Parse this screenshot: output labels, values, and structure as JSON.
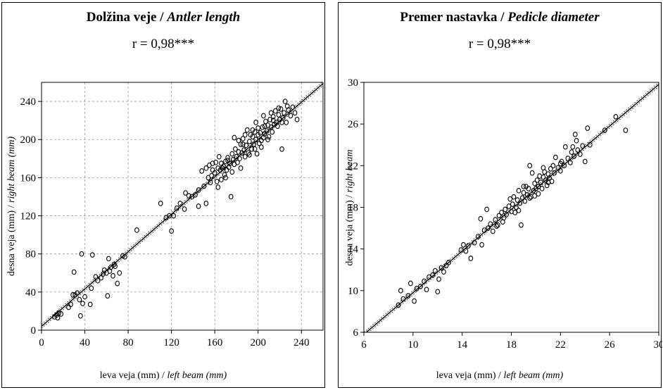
{
  "chart_data": [
    {
      "type": "scatter",
      "title": "Dolžina veje /",
      "title_italic": "Antler length",
      "annotation": "r = 0,98***",
      "xlabel": "leva veja (mm) /",
      "xlabel_italic": "left beam (mm)",
      "ylabel": "desna veja (mm) /",
      "ylabel_italic": "right beam (mm)",
      "xlim": [
        0,
        260
      ],
      "ylim": [
        0,
        260
      ],
      "xticks": [
        0,
        40,
        80,
        120,
        160,
        200,
        240
      ],
      "yticks": [
        0,
        40,
        80,
        120,
        160,
        200,
        240
      ],
      "grid": true,
      "fit": {
        "slope": 0.98,
        "intercept": 4
      },
      "points": [
        [
          12,
          14
        ],
        [
          14,
          16
        ],
        [
          15,
          13
        ],
        [
          16,
          18
        ],
        [
          18,
          17
        ],
        [
          25,
          24
        ],
        [
          27,
          27
        ],
        [
          29,
          37
        ],
        [
          30,
          61
        ],
        [
          31,
          37
        ],
        [
          33,
          39
        ],
        [
          35,
          32
        ],
        [
          36,
          15
        ],
        [
          37,
          80
        ],
        [
          38,
          28
        ],
        [
          40,
          35
        ],
        [
          45,
          27
        ],
        [
          46,
          44
        ],
        [
          47,
          79
        ],
        [
          50,
          56
        ],
        [
          52,
          52
        ],
        [
          55,
          55
        ],
        [
          57,
          59
        ],
        [
          58,
          63
        ],
        [
          60,
          60
        ],
        [
          61,
          36
        ],
        [
          62,
          75
        ],
        [
          63,
          62
        ],
        [
          64,
          66
        ],
        [
          66,
          57
        ],
        [
          67,
          69
        ],
        [
          68,
          67
        ],
        [
          70,
          49
        ],
        [
          72,
          60
        ],
        [
          75,
          78
        ],
        [
          77,
          77
        ],
        [
          88,
          105
        ],
        [
          110,
          133
        ],
        [
          115,
          118
        ],
        [
          118,
          120
        ],
        [
          120,
          104
        ],
        [
          122,
          120
        ],
        [
          125,
          128
        ],
        [
          128,
          133
        ],
        [
          132,
          127
        ],
        [
          133,
          144
        ],
        [
          136,
          141
        ],
        [
          139,
          140
        ],
        [
          142,
          142
        ],
        [
          145,
          147
        ],
        [
          148,
          167
        ],
        [
          150,
          151
        ],
        [
          152,
          133
        ],
        [
          154,
          160
        ],
        [
          155,
          173
        ],
        [
          156,
          155
        ],
        [
          157,
          162
        ],
        [
          158,
          168
        ],
        [
          160,
          165
        ],
        [
          161,
          176
        ],
        [
          162,
          156
        ],
        [
          163,
          170
        ],
        [
          164,
          182
        ],
        [
          165,
          168
        ],
        [
          166,
          158
        ],
        [
          167,
          170
        ],
        [
          168,
          172
        ],
        [
          169,
          163
        ],
        [
          170,
          177
        ],
        [
          171,
          168
        ],
        [
          172,
          181
        ],
        [
          173,
          171
        ],
        [
          174,
          175
        ],
        [
          175,
          140
        ],
        [
          176,
          185
        ],
        [
          177,
          179
        ],
        [
          178,
          174
        ],
        [
          179,
          190
        ],
        [
          180,
          182
        ],
        [
          181,
          176
        ],
        [
          182,
          187
        ],
        [
          183,
          180
        ],
        [
          184,
          195
        ],
        [
          185,
          186
        ],
        [
          186,
          201
        ],
        [
          187,
          189
        ],
        [
          188,
          182
        ],
        [
          189,
          194
        ],
        [
          190,
          210
        ],
        [
          191,
          186
        ],
        [
          192,
          198
        ],
        [
          193,
          205
        ],
        [
          194,
          190
        ],
        [
          195,
          203
        ],
        [
          196,
          195
        ],
        [
          197,
          208
        ],
        [
          198,
          200
        ],
        [
          199,
          185
        ],
        [
          200,
          212
        ],
        [
          201,
          196
        ],
        [
          202,
          207
        ],
        [
          203,
          199
        ],
        [
          204,
          213
        ],
        [
          205,
          202
        ],
        [
          206,
          206
        ],
        [
          207,
          219
        ],
        [
          208,
          209
        ],
        [
          209,
          215
        ],
        [
          210,
          203
        ],
        [
          211,
          221
        ],
        [
          212,
          213
        ],
        [
          213,
          208
        ],
        [
          214,
          224
        ],
        [
          215,
          216
        ],
        [
          216,
          230
        ],
        [
          217,
          218
        ],
        [
          218,
          214
        ],
        [
          219,
          226
        ],
        [
          220,
          221
        ],
        [
          221,
          232
        ],
        [
          222,
          190
        ],
        [
          223,
          223
        ],
        [
          224,
          228
        ],
        [
          225,
          240
        ],
        [
          226,
          218
        ],
        [
          228,
          231
        ],
        [
          230,
          225
        ],
        [
          232,
          234
        ],
        [
          234,
          228
        ],
        [
          236,
          221
        ],
        [
          152,
          170
        ],
        [
          178,
          202
        ],
        [
          158,
          175
        ],
        [
          186,
          195
        ],
        [
          195,
          210
        ],
        [
          205,
          225
        ],
        [
          212,
          228
        ],
        [
          198,
          218
        ],
        [
          188,
          205
        ],
        [
          172,
          178
        ],
        [
          166,
          175
        ],
        [
          182,
          199
        ],
        [
          200,
          205
        ],
        [
          206,
          214
        ],
        [
          214,
          220
        ],
        [
          219,
          233
        ],
        [
          222,
          218
        ],
        [
          227,
          235
        ],
        [
          184,
          170
        ],
        [
          192,
          184
        ],
        [
          197,
          190
        ],
        [
          203,
          192
        ],
        [
          209,
          200
        ],
        [
          176,
          166
        ],
        [
          170,
          160
        ],
        [
          163,
          150
        ],
        [
          145,
          130
        ]
      ]
    },
    {
      "type": "scatter",
      "title": "Premer nastavka /",
      "title_italic": "Pedicle diameter",
      "annotation": "r = 0,98***",
      "xlabel": "leva veja (mm) /",
      "xlabel_italic": "left beam (mm)",
      "ylabel": "desna veja (mm) /",
      "ylabel_italic": "right beam",
      "xlim": [
        6,
        30
      ],
      "ylim": [
        6,
        30
      ],
      "xticks": [
        6,
        10,
        14,
        18,
        22,
        26,
        30
      ],
      "yticks": [
        6,
        10,
        14,
        18,
        22,
        26,
        30
      ],
      "grid": false,
      "fit": {
        "slope": 1.0,
        "intercept": -0.2
      },
      "points": [
        [
          8.8,
          8.6
        ],
        [
          9.0,
          10.0
        ],
        [
          9.2,
          9.2
        ],
        [
          9.6,
          9.5
        ],
        [
          9.8,
          10.7
        ],
        [
          10.1,
          9.0
        ],
        [
          10.3,
          10.2
        ],
        [
          10.6,
          10.4
        ],
        [
          10.9,
          10.9
        ],
        [
          11.1,
          10.1
        ],
        [
          11.3,
          11.3
        ],
        [
          11.6,
          11.5
        ],
        [
          11.8,
          11.9
        ],
        [
          12.0,
          9.9
        ],
        [
          12.1,
          11.1
        ],
        [
          12.3,
          12.2
        ],
        [
          12.5,
          11.8
        ],
        [
          12.7,
          12.4
        ],
        [
          12.9,
          12.7
        ],
        [
          13.9,
          13.9
        ],
        [
          14.1,
          14.4
        ],
        [
          14.3,
          13.8
        ],
        [
          14.5,
          14.3
        ],
        [
          14.7,
          13.1
        ],
        [
          15.0,
          14.6
        ],
        [
          15.3,
          15.2
        ],
        [
          15.5,
          16.9
        ],
        [
          15.6,
          14.4
        ],
        [
          15.8,
          15.8
        ],
        [
          16.0,
          17.8
        ],
        [
          16.1,
          16.0
        ],
        [
          16.3,
          16.4
        ],
        [
          16.5,
          15.7
        ],
        [
          16.7,
          16.8
        ],
        [
          16.9,
          16.3
        ],
        [
          17.0,
          17.2
        ],
        [
          17.2,
          17.5
        ],
        [
          17.3,
          16.6
        ],
        [
          17.5,
          17.8
        ],
        [
          17.6,
          17.3
        ],
        [
          17.8,
          18.1
        ],
        [
          17.9,
          18.8
        ],
        [
          18.0,
          17.6
        ],
        [
          18.1,
          18.3
        ],
        [
          18.2,
          19.0
        ],
        [
          18.4,
          18.0
        ],
        [
          18.5,
          18.7
        ],
        [
          18.6,
          19.6
        ],
        [
          18.7,
          18.4
        ],
        [
          18.8,
          16.3
        ],
        [
          18.9,
          18.9
        ],
        [
          19.0,
          19.4
        ],
        [
          19.1,
          18.6
        ],
        [
          19.2,
          20.0
        ],
        [
          19.3,
          19.2
        ],
        [
          19.4,
          19.8
        ],
        [
          19.5,
          22.0
        ],
        [
          19.6,
          19.0
        ],
        [
          19.7,
          21.3
        ],
        [
          19.8,
          19.6
        ],
        [
          19.9,
          20.3
        ],
        [
          20.0,
          19.8
        ],
        [
          20.1,
          20.6
        ],
        [
          20.2,
          20.0
        ],
        [
          20.3,
          21.0
        ],
        [
          20.4,
          20.4
        ],
        [
          20.5,
          19.8
        ],
        [
          20.6,
          20.9
        ],
        [
          20.7,
          21.4
        ],
        [
          20.8,
          20.6
        ],
        [
          20.9,
          20.1
        ],
        [
          21.0,
          21.2
        ],
        [
          21.1,
          20.8
        ],
        [
          21.2,
          21.7
        ],
        [
          21.3,
          20.5
        ],
        [
          21.4,
          22.0
        ],
        [
          21.5,
          21.3
        ],
        [
          21.6,
          22.8
        ],
        [
          21.8,
          21.8
        ],
        [
          22.0,
          21.5
        ],
        [
          22.1,
          22.4
        ],
        [
          22.3,
          22.0
        ],
        [
          22.4,
          23.8
        ],
        [
          22.6,
          22.7
        ],
        [
          22.8,
          22.3
        ],
        [
          22.9,
          23.3
        ],
        [
          23.1,
          22.9
        ],
        [
          23.2,
          25.0
        ],
        [
          23.3,
          24.4
        ],
        [
          23.4,
          23.5
        ],
        [
          23.6,
          23.1
        ],
        [
          23.8,
          23.9
        ],
        [
          24.0,
          22.4
        ],
        [
          24.2,
          25.6
        ],
        [
          24.4,
          24.0
        ],
        [
          25.6,
          25.4
        ],
        [
          26.5,
          26.7
        ],
        [
          27.3,
          25.4
        ],
        [
          18.3,
          17.5
        ],
        [
          19.5,
          18.9
        ],
        [
          20.2,
          19.3
        ],
        [
          21.0,
          20.4
        ],
        [
          22.0,
          22.2
        ],
        [
          17.4,
          17.0
        ],
        [
          16.8,
          16.2
        ],
        [
          19.0,
          20.0
        ],
        [
          20.6,
          21.8
        ],
        [
          23.0,
          23.8
        ],
        [
          18.6,
          17.7
        ],
        [
          19.9,
          19.1
        ]
      ]
    }
  ]
}
